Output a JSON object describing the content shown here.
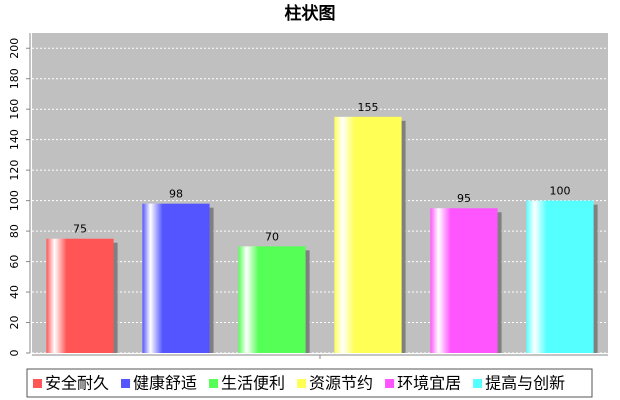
{
  "chart_data": {
    "type": "bar",
    "title": "柱状图",
    "categories": [
      "安全耐久",
      "健康舒适",
      "生活便利",
      "资源节约",
      "环境宜居",
      "提高与创新"
    ],
    "values": [
      75,
      98,
      70,
      155,
      95,
      100
    ],
    "colors": [
      "#ff5555",
      "#5555ff",
      "#55ff55",
      "#ffff55",
      "#ff55ff",
      "#55ffff"
    ],
    "ylim": [
      0,
      210
    ],
    "yticks": [
      0,
      20,
      40,
      60,
      80,
      100,
      120,
      140,
      160,
      180,
      200
    ],
    "grid": true,
    "legend": "bottom"
  }
}
